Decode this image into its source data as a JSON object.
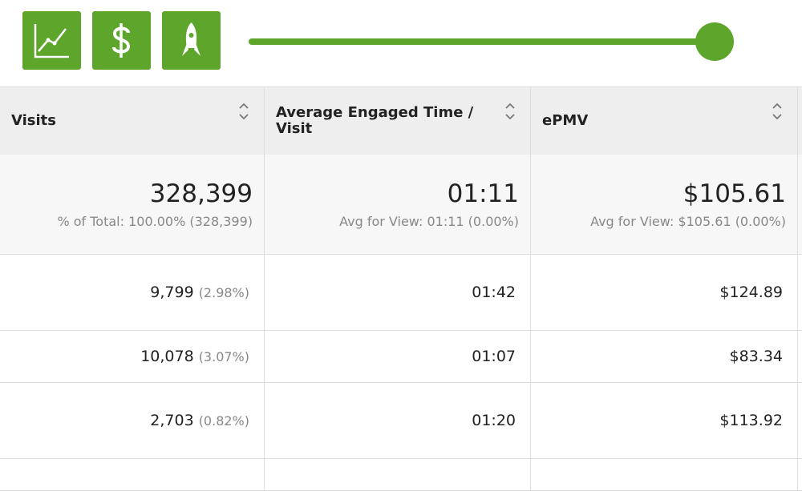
{
  "table": {
    "columns": [
      "Visits",
      "Average Engaged Time / Visit",
      "ePMV"
    ],
    "totals": [
      {
        "value": "328,399",
        "note": "% of Total: 100.00% (328,399)"
      },
      {
        "value": "01:11",
        "note": "Avg for View: 01:11 (0.00%)"
      },
      {
        "value": "$105.61",
        "note": "Avg for View: $105.61 (0.00%)"
      }
    ],
    "rows": [
      [
        {
          "value": "9,799",
          "share": "(2.98%)"
        },
        "01:42",
        "$124.89"
      ],
      [
        {
          "value": "10,078",
          "share": "(3.07%)"
        },
        "01:07",
        "$83.34"
      ],
      [
        {
          "value": "2,703",
          "share": "(0.82%)"
        },
        "01:20",
        "$113.92"
      ]
    ]
  }
}
